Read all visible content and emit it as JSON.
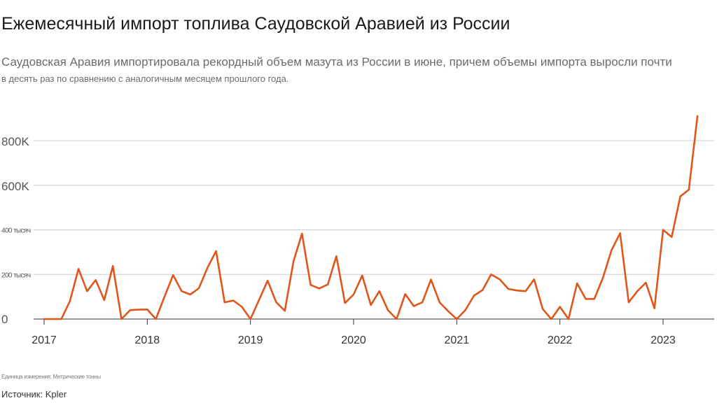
{
  "title": "Ежемесячный импорт топлива Саудовской Аравией из России",
  "subtitle_line1": "Саудовская Аравия импортировала рекордный объем мазута из России в июне, причем объемы импорта выросли почти",
  "subtitle_line2": "в десять раз по сравнению с аналогичным месяцем прошлого года.",
  "footnote": "Единица измерения: Метрические тонны",
  "source": "Источник: Kpler",
  "colors": {
    "line": "#e0561a",
    "grid": "#cccccc",
    "axis": "#333333"
  },
  "chart_data": {
    "type": "line",
    "title": "Ежемесячный импорт топлива Саудовской Аравией из России",
    "xlabel": "",
    "ylabel": "",
    "unit": "Метрические тонны",
    "ylim": [
      0,
      920000
    ],
    "grid": true,
    "yticks": [
      {
        "value": 0,
        "label": "0"
      },
      {
        "value": 200000,
        "label": "200 тысяч"
      },
      {
        "value": 400000,
        "label": "400 тысяч"
      },
      {
        "value": 600000,
        "label": "600K"
      },
      {
        "value": 800000,
        "label": "800K"
      }
    ],
    "xticks": [
      "2017",
      "2018",
      "2019",
      "2020",
      "2021",
      "2022",
      "2023"
    ],
    "start": "2017-01",
    "series": [
      {
        "values": [
          0,
          0,
          0,
          80000,
          225000,
          125000,
          175000,
          85000,
          238000,
          0,
          40000,
          42000,
          43000,
          0,
          100000,
          197000,
          125000,
          110000,
          138000,
          230000,
          305000,
          75000,
          83000,
          55000,
          0,
          85000,
          172000,
          75000,
          37000,
          258000,
          383000,
          153000,
          137000,
          155000,
          282000,
          72000,
          110000,
          195000,
          63000,
          125000,
          40000,
          0,
          112000,
          58000,
          75000,
          177000,
          75000,
          35000,
          0,
          40000,
          105000,
          130000,
          200000,
          178000,
          135000,
          128000,
          125000,
          178000,
          45000,
          0,
          55000,
          0,
          160000,
          90000,
          90000,
          185000,
          308000,
          385000,
          75000,
          125000,
          163000,
          48000,
          400000,
          368000,
          550000,
          580000,
          910000
        ]
      }
    ]
  }
}
